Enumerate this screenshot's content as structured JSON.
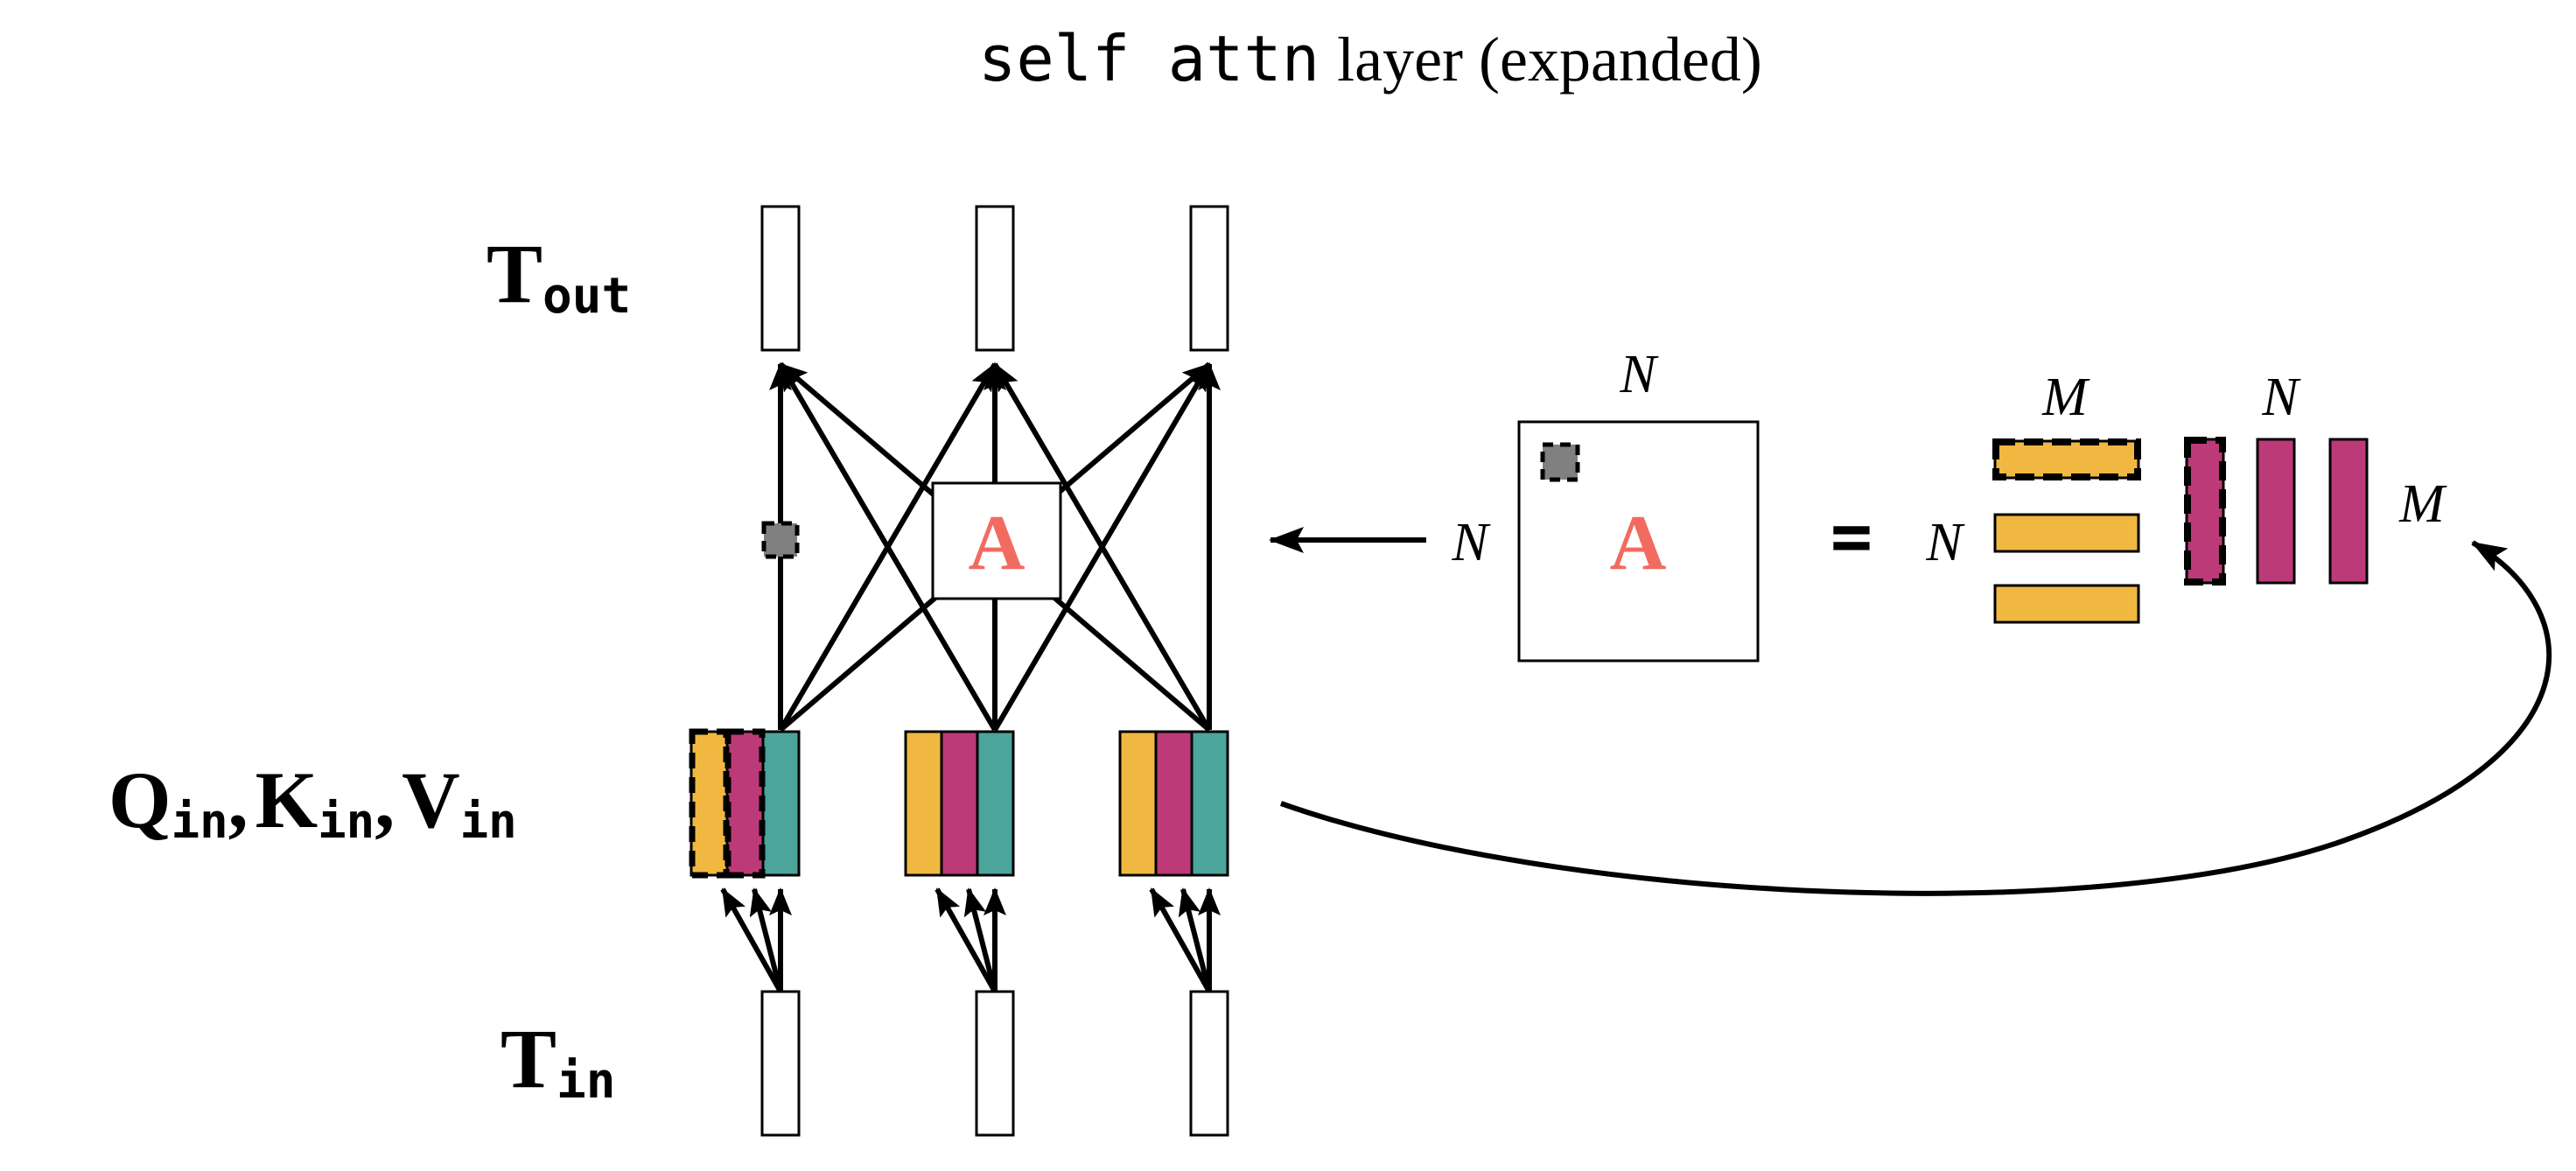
{
  "title": {
    "code": "self attn",
    "text": "layer (expanded)"
  },
  "labels": {
    "t_out": {
      "main": "T",
      "sub": "out"
    },
    "qkv": [
      {
        "main": "Q",
        "sub": "in",
        "sep": ","
      },
      {
        "main": "K",
        "sub": "in",
        "sep": ","
      },
      {
        "main": "V",
        "sub": "in",
        "sep": ""
      }
    ],
    "t_in": {
      "main": "T",
      "sub": "in"
    }
  },
  "attention": {
    "center_label": "A",
    "matrix_label": "A",
    "dims": {
      "n_top": "N",
      "n_left": "N",
      "n_row": "N",
      "m_top": "M",
      "n_col_top": "N",
      "m_right": "M"
    },
    "equals": "="
  },
  "colors": {
    "query": "#F0B840",
    "key": "#BC3A78",
    "value": "#4BA59A",
    "attention_text": "#F26B61",
    "highlight": "#808080",
    "stroke": "#000000"
  }
}
